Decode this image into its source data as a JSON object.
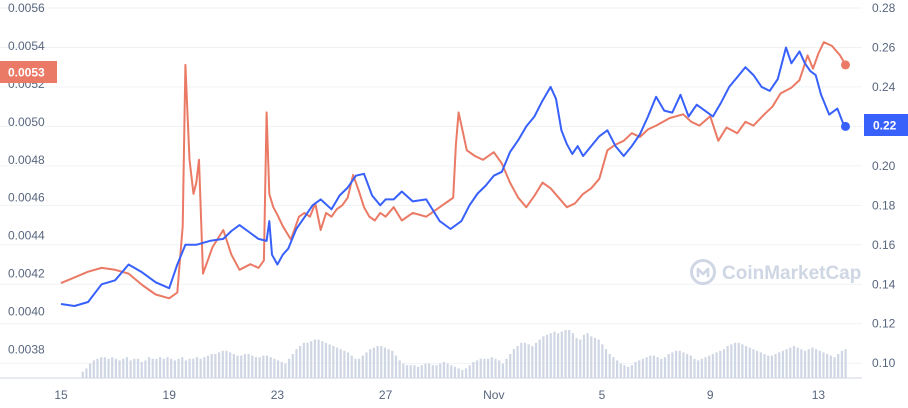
{
  "watermark": {
    "text": "CoinMarketCap"
  },
  "chart_data": {
    "type": "line",
    "grid": true,
    "legend": "none",
    "colors": {
      "red_series": "#ea7a65",
      "blue_series": "#3861fb",
      "volume": "#cfd6e4"
    },
    "x_ticks": [
      "15",
      "19",
      "23",
      "27",
      "Nov",
      "5",
      "9",
      "13"
    ],
    "x_range": [
      0,
      29.5
    ],
    "x_tick_positions": [
      0,
      4,
      8,
      12,
      16,
      20,
      24,
      28
    ],
    "left_axis": {
      "ticks": [
        "0.0056",
        "0.0054",
        "0.0052",
        "0.0050",
        "0.0048",
        "0.0046",
        "0.0044",
        "0.0042",
        "0.0040",
        "0.0038"
      ],
      "tick_values": [
        0.0056,
        0.0054,
        0.0052,
        0.005,
        0.0048,
        0.0046,
        0.0044,
        0.0042,
        0.004,
        0.0038
      ],
      "range": [
        0.00365,
        0.0056
      ]
    },
    "right_axis": {
      "ticks": [
        "0.28",
        "0.26",
        "0.24",
        "0.22",
        "0.20",
        "0.18",
        "0.16",
        "0.14",
        "0.12",
        "0.10"
      ],
      "tick_values": [
        0.28,
        0.26,
        0.24,
        0.22,
        0.2,
        0.18,
        0.16,
        0.14,
        0.12,
        0.1
      ],
      "range": [
        0.0925,
        0.28
      ]
    },
    "current_values": {
      "left": "0.0053",
      "right": "0.22"
    },
    "series": [
      {
        "axis": "left",
        "color": "#ea7a65",
        "points": [
          [
            0,
            0.00415
          ],
          [
            0.5,
            0.00418
          ],
          [
            1,
            0.00421
          ],
          [
            1.5,
            0.00423
          ],
          [
            2,
            0.00422
          ],
          [
            2.5,
            0.0042
          ],
          [
            3,
            0.00414
          ],
          [
            3.5,
            0.00409
          ],
          [
            4,
            0.00407
          ],
          [
            4.3,
            0.0041
          ],
          [
            4.5,
            0.00445
          ],
          [
            4.6,
            0.0053
          ],
          [
            4.75,
            0.0048
          ],
          [
            4.9,
            0.00462
          ],
          [
            5,
            0.00468
          ],
          [
            5.1,
            0.0048
          ],
          [
            5.25,
            0.0042
          ],
          [
            5.4,
            0.00426
          ],
          [
            5.6,
            0.00434
          ],
          [
            6,
            0.00443
          ],
          [
            6.3,
            0.0043
          ],
          [
            6.6,
            0.00422
          ],
          [
            7,
            0.00425
          ],
          [
            7.3,
            0.00423
          ],
          [
            7.5,
            0.00427
          ],
          [
            7.6,
            0.00505
          ],
          [
            7.7,
            0.00462
          ],
          [
            7.85,
            0.00455
          ],
          [
            8,
            0.00451
          ],
          [
            8.2,
            0.00445
          ],
          [
            8.5,
            0.00438
          ],
          [
            8.8,
            0.0045
          ],
          [
            9,
            0.00452
          ],
          [
            9.2,
            0.0045
          ],
          [
            9.4,
            0.00457
          ],
          [
            9.6,
            0.00443
          ],
          [
            9.8,
            0.00452
          ],
          [
            10,
            0.0045
          ],
          [
            10.2,
            0.00454
          ],
          [
            10.4,
            0.00456
          ],
          [
            10.6,
            0.0046
          ],
          [
            10.8,
            0.00472
          ],
          [
            11,
            0.00464
          ],
          [
            11.2,
            0.00455
          ],
          [
            11.4,
            0.0045
          ],
          [
            11.6,
            0.00448
          ],
          [
            11.8,
            0.00452
          ],
          [
            12,
            0.0045
          ],
          [
            12.3,
            0.00455
          ],
          [
            12.6,
            0.00448
          ],
          [
            13,
            0.00452
          ],
          [
            13.5,
            0.0045
          ],
          [
            14,
            0.00455
          ],
          [
            14.3,
            0.00458
          ],
          [
            14.5,
            0.0046
          ],
          [
            14.6,
            0.00488
          ],
          [
            14.7,
            0.00505
          ],
          [
            14.85,
            0.00495
          ],
          [
            15,
            0.00485
          ],
          [
            15.3,
            0.00482
          ],
          [
            15.6,
            0.0048
          ],
          [
            16,
            0.00484
          ],
          [
            16.3,
            0.00478
          ],
          [
            16.6,
            0.00468
          ],
          [
            16.9,
            0.0046
          ],
          [
            17.2,
            0.00455
          ],
          [
            17.5,
            0.00461
          ],
          [
            17.8,
            0.00468
          ],
          [
            18.1,
            0.00465
          ],
          [
            18.4,
            0.0046
          ],
          [
            18.7,
            0.00455
          ],
          [
            19,
            0.00457
          ],
          [
            19.3,
            0.00462
          ],
          [
            19.6,
            0.00465
          ],
          [
            19.9,
            0.0047
          ],
          [
            20.2,
            0.00485
          ],
          [
            20.5,
            0.00488
          ],
          [
            20.8,
            0.0049
          ],
          [
            21.1,
            0.00494
          ],
          [
            21.4,
            0.00492
          ],
          [
            21.7,
            0.00496
          ],
          [
            22,
            0.00498
          ],
          [
            22.5,
            0.00502
          ],
          [
            23,
            0.00504
          ],
          [
            23.3,
            0.005
          ],
          [
            23.6,
            0.00498
          ],
          [
            24,
            0.00503
          ],
          [
            24.3,
            0.0049
          ],
          [
            24.6,
            0.00497
          ],
          [
            25,
            0.00494
          ],
          [
            25.3,
            0.005
          ],
          [
            25.6,
            0.00498
          ],
          [
            26,
            0.00504
          ],
          [
            26.3,
            0.00508
          ],
          [
            26.6,
            0.00515
          ],
          [
            27,
            0.00518
          ],
          [
            27.3,
            0.00522
          ],
          [
            27.6,
            0.00535
          ],
          [
            27.8,
            0.00528
          ],
          [
            28,
            0.00536
          ],
          [
            28.2,
            0.00542
          ],
          [
            28.5,
            0.0054
          ],
          [
            28.8,
            0.00535
          ],
          [
            29,
            0.0053
          ]
        ]
      },
      {
        "axis": "right",
        "color": "#3861fb",
        "points": [
          [
            0,
            0.13
          ],
          [
            0.5,
            0.129
          ],
          [
            1,
            0.131
          ],
          [
            1.5,
            0.14
          ],
          [
            2,
            0.142
          ],
          [
            2.5,
            0.15
          ],
          [
            3,
            0.146
          ],
          [
            3.5,
            0.141
          ],
          [
            4,
            0.138
          ],
          [
            4.3,
            0.15
          ],
          [
            4.6,
            0.16
          ],
          [
            5,
            0.16
          ],
          [
            5.5,
            0.162
          ],
          [
            6,
            0.163
          ],
          [
            6.3,
            0.167
          ],
          [
            6.6,
            0.17
          ],
          [
            7,
            0.166
          ],
          [
            7.3,
            0.163
          ],
          [
            7.6,
            0.162
          ],
          [
            7.7,
            0.172
          ],
          [
            7.8,
            0.155
          ],
          [
            8,
            0.15
          ],
          [
            8.2,
            0.155
          ],
          [
            8.4,
            0.158
          ],
          [
            8.7,
            0.168
          ],
          [
            9,
            0.174
          ],
          [
            9.3,
            0.18
          ],
          [
            9.6,
            0.183
          ],
          [
            10,
            0.178
          ],
          [
            10.3,
            0.185
          ],
          [
            10.6,
            0.189
          ],
          [
            10.9,
            0.195
          ],
          [
            11.2,
            0.196
          ],
          [
            11.5,
            0.185
          ],
          [
            11.8,
            0.18
          ],
          [
            12,
            0.183
          ],
          [
            12.3,
            0.183
          ],
          [
            12.6,
            0.187
          ],
          [
            13,
            0.182
          ],
          [
            13.5,
            0.183
          ],
          [
            14,
            0.172
          ],
          [
            14.4,
            0.168
          ],
          [
            14.8,
            0.172
          ],
          [
            15.1,
            0.18
          ],
          [
            15.4,
            0.186
          ],
          [
            15.7,
            0.19
          ],
          [
            16,
            0.195
          ],
          [
            16.3,
            0.197
          ],
          [
            16.6,
            0.207
          ],
          [
            16.9,
            0.213
          ],
          [
            17.2,
            0.22
          ],
          [
            17.5,
            0.225
          ],
          [
            17.8,
            0.233
          ],
          [
            18.1,
            0.24
          ],
          [
            18.3,
            0.234
          ],
          [
            18.5,
            0.218
          ],
          [
            18.7,
            0.211
          ],
          [
            18.9,
            0.206
          ],
          [
            19.1,
            0.21
          ],
          [
            19.3,
            0.205
          ],
          [
            19.6,
            0.21
          ],
          [
            19.9,
            0.215
          ],
          [
            20.2,
            0.218
          ],
          [
            20.5,
            0.21
          ],
          [
            20.8,
            0.205
          ],
          [
            21.1,
            0.21
          ],
          [
            21.4,
            0.216
          ],
          [
            21.7,
            0.225
          ],
          [
            22,
            0.235
          ],
          [
            22.3,
            0.228
          ],
          [
            22.6,
            0.227
          ],
          [
            22.9,
            0.236
          ],
          [
            23.2,
            0.225
          ],
          [
            23.5,
            0.231
          ],
          [
            23.8,
            0.228
          ],
          [
            24.1,
            0.225
          ],
          [
            24.4,
            0.232
          ],
          [
            24.7,
            0.24
          ],
          [
            25,
            0.245
          ],
          [
            25.3,
            0.25
          ],
          [
            25.6,
            0.246
          ],
          [
            25.9,
            0.24
          ],
          [
            26.2,
            0.238
          ],
          [
            26.5,
            0.244
          ],
          [
            26.8,
            0.26
          ],
          [
            27,
            0.252
          ],
          [
            27.3,
            0.258
          ],
          [
            27.5,
            0.252
          ],
          [
            27.7,
            0.248
          ],
          [
            27.9,
            0.246
          ],
          [
            28.1,
            0.236
          ],
          [
            28.4,
            0.226
          ],
          [
            28.7,
            0.229
          ],
          [
            28.9,
            0.222
          ],
          [
            29,
            0.22
          ]
        ]
      }
    ],
    "volume_series": {
      "x_start": 0.8,
      "x_end": 29,
      "values": [
        4,
        6,
        9,
        11,
        12,
        13,
        13,
        12,
        13,
        12,
        11,
        12,
        13,
        11,
        12,
        12,
        10,
        11,
        13,
        12,
        12,
        13,
        12,
        13,
        12,
        11,
        12,
        13,
        11,
        12,
        12,
        13,
        12,
        13,
        14,
        15,
        15,
        16,
        17,
        17,
        16,
        15,
        14,
        14,
        15,
        15,
        14,
        13,
        13,
        14,
        14,
        13,
        12,
        11,
        10,
        9,
        12,
        15,
        18,
        20,
        22,
        22,
        23,
        24,
        24,
        23,
        22,
        21,
        20,
        19,
        18,
        17,
        16,
        14,
        12,
        12,
        14,
        16,
        18,
        19,
        20,
        20,
        19,
        18,
        17,
        14,
        11,
        9,
        8,
        8,
        8,
        7,
        8,
        9,
        9,
        8,
        8,
        9,
        10,
        9,
        8,
        7,
        6,
        5,
        6,
        8,
        10,
        11,
        12,
        12,
        12,
        13,
        12,
        11,
        9,
        12,
        15,
        18,
        20,
        22,
        22,
        21,
        20,
        22,
        24,
        26,
        27,
        28,
        29,
        28,
        29,
        30,
        30,
        28,
        25,
        24,
        27,
        28,
        26,
        25,
        24,
        21,
        18,
        15,
        13,
        11,
        9,
        8,
        7,
        8,
        10,
        11,
        12,
        13,
        14,
        14,
        13,
        12,
        13,
        15,
        16,
        17,
        17,
        16,
        15,
        14,
        12,
        11,
        12,
        13,
        14,
        15,
        16,
        17,
        18,
        20,
        21,
        22,
        22,
        21,
        20,
        19,
        18,
        17,
        16,
        15,
        14,
        14,
        15,
        16,
        17,
        18,
        19,
        20,
        19,
        18,
        17,
        18,
        19,
        18,
        17,
        16,
        15,
        14,
        13,
        15,
        17,
        18
      ],
      "max": 30
    }
  }
}
